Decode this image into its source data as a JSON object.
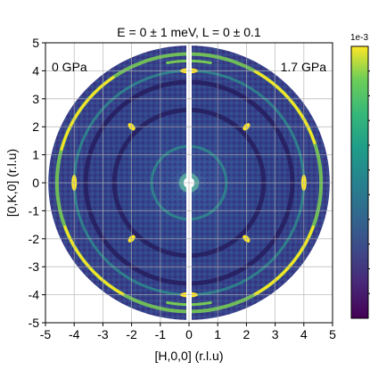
{
  "chart_data": {
    "type": "heatmap",
    "title": "E = 0 ± 1 meV, L = 0 ± 0.1",
    "xlabel": "[H,0,0] (r.l.u)",
    "ylabel": "[0,K,0] (r.l.u)",
    "xlim": [
      -5,
      5
    ],
    "ylim": [
      -5,
      5
    ],
    "xticks": [
      -5,
      -4,
      -3,
      -2,
      -1,
      0,
      1,
      2,
      3,
      4,
      5
    ],
    "yticks": [
      -5,
      -4,
      -3,
      -2,
      -1,
      0,
      1,
      2,
      3,
      4,
      5
    ],
    "xtick_labels": [
      "-5",
      "-4",
      "-3",
      "-2",
      "-1",
      "0",
      "1",
      "2",
      "3",
      "4",
      "5"
    ],
    "ytick_labels": [
      "-5",
      "-4",
      "-3",
      "-2",
      "-1",
      "0",
      "1",
      "2",
      "3",
      "4",
      "5"
    ],
    "grid": true,
    "panels": [
      {
        "label": "0 GPa",
        "h_range": [
          -5,
          0
        ],
        "side": "left"
      },
      {
        "label": "1.7 GPa",
        "h_range": [
          0,
          5
        ],
        "side": "right"
      }
    ],
    "bragg_peaks": [
      {
        "h": 0,
        "k": 4
      },
      {
        "h": 0,
        "k": -4
      },
      {
        "h": 4,
        "k": 0
      },
      {
        "h": -4,
        "k": 0
      },
      {
        "h": 2,
        "k": 2
      },
      {
        "h": -2,
        "k": 2
      },
      {
        "h": 2,
        "k": -2
      },
      {
        "h": -2,
        "k": -2
      }
    ],
    "powder_rings": [
      {
        "q": 4.6,
        "intensity": "high"
      },
      {
        "q": 4.0,
        "intensity": "medium"
      },
      {
        "q": 3.6,
        "intensity": "low-dark"
      },
      {
        "q": 2.6,
        "intensity": "low-dark"
      },
      {
        "q": 1.3,
        "intensity": "medium"
      }
    ],
    "colorbar": {
      "exponent_label": "1e-3",
      "colormap": "viridis",
      "tick_count": 10
    },
    "colors": {
      "background_low": "#3a2f7a",
      "mid": "#2a6f8e",
      "ring": "#7ad151",
      "peak": "#fde725"
    }
  }
}
